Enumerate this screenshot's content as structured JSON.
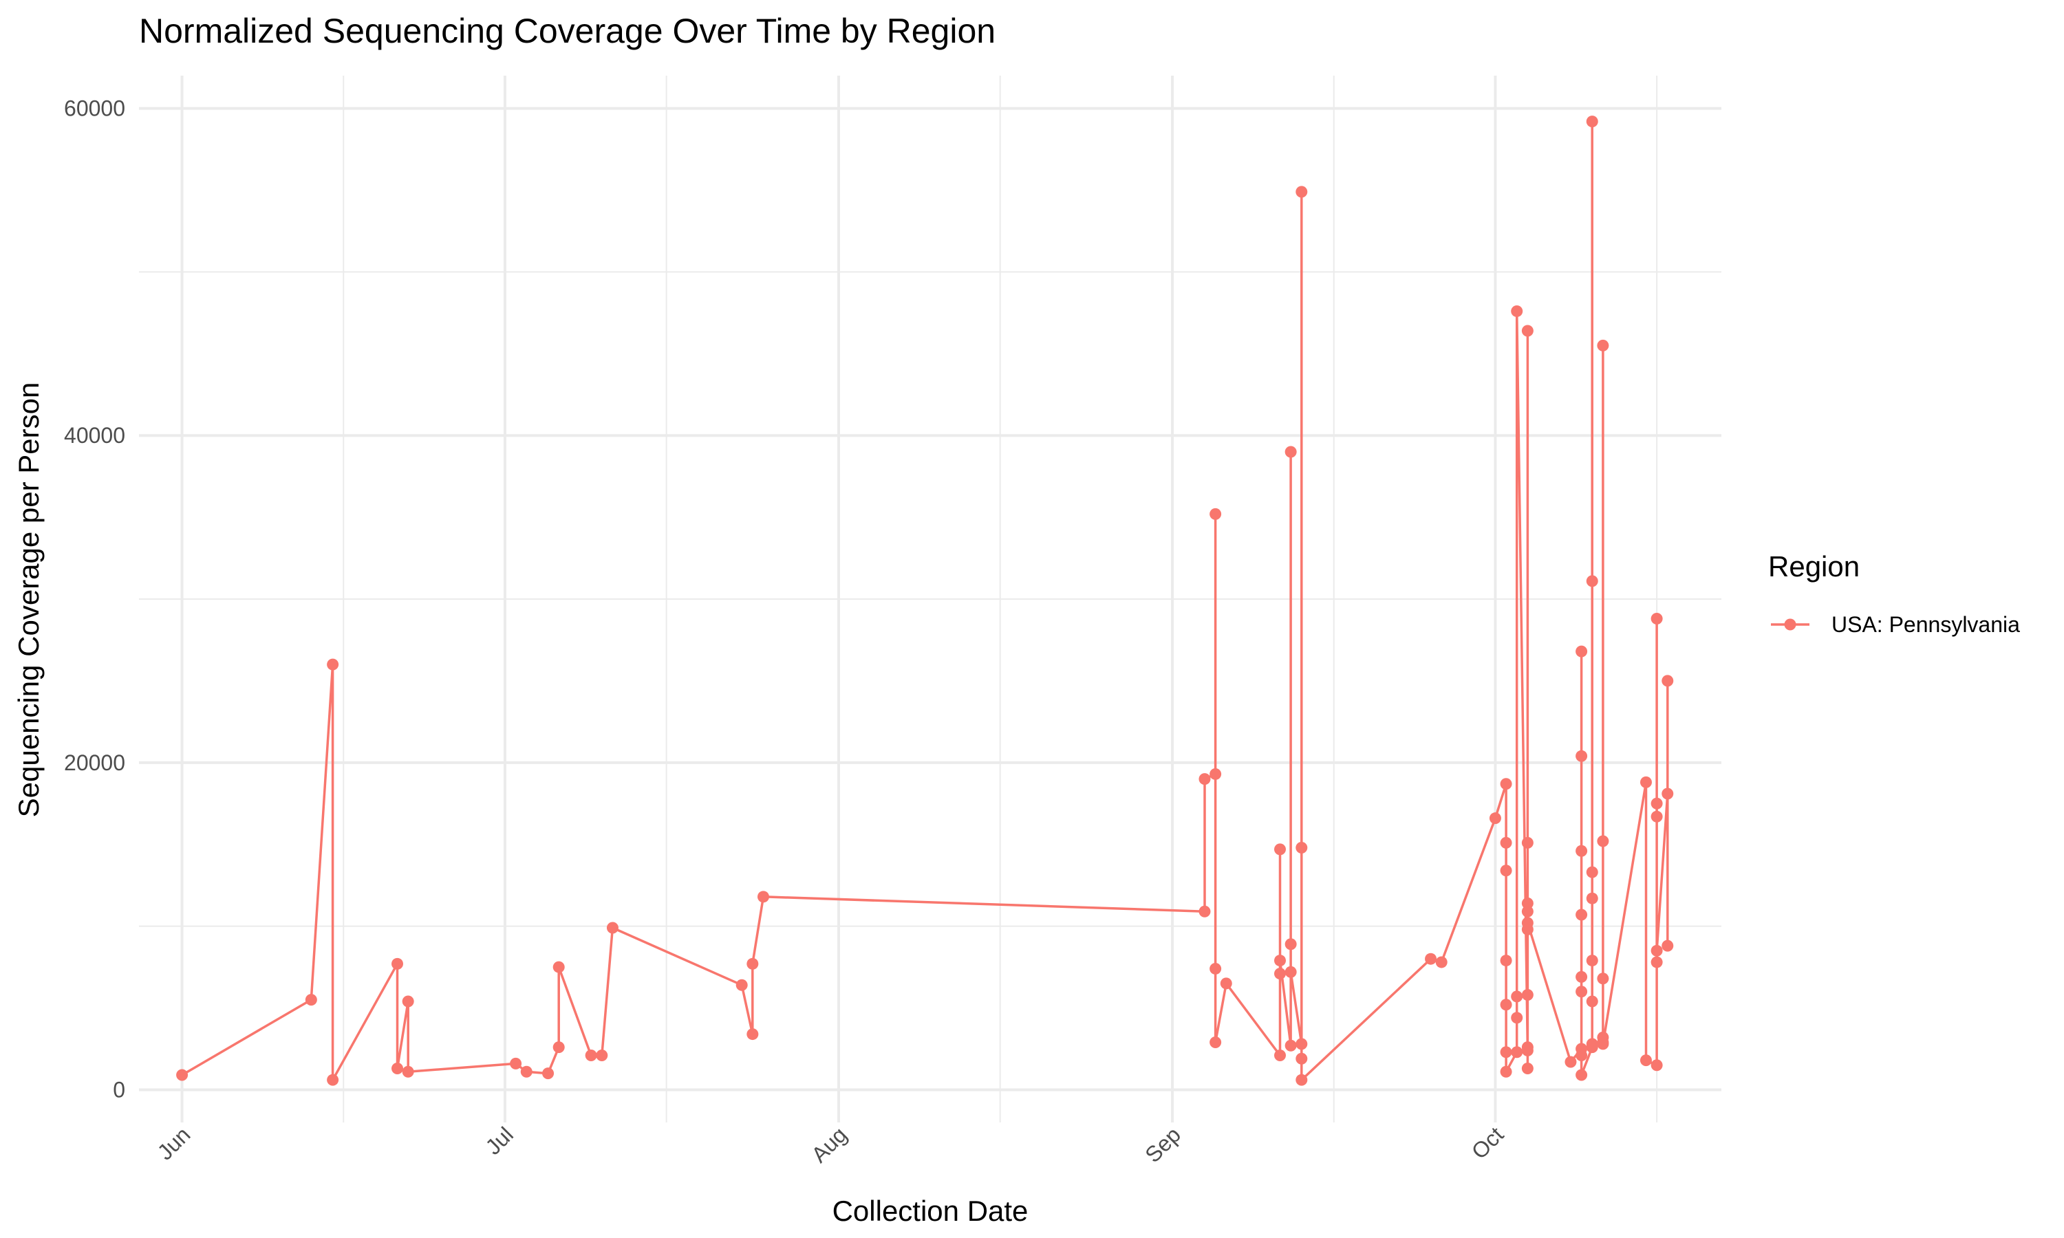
{
  "chart_data": {
    "type": "line",
    "title": "Normalized Sequencing Coverage Over Time by Region",
    "xlabel": "Collection Date",
    "ylabel": "Sequencing Coverage per Person",
    "xlim": [
      "2023-05-28",
      "2023-10-22"
    ],
    "ylim": [
      -2000,
      62000
    ],
    "x_ticks": [
      {
        "date": "2023-06-01",
        "label": "Jun"
      },
      {
        "date": "2023-07-01",
        "label": "Jul"
      },
      {
        "date": "2023-08-01",
        "label": "Aug"
      },
      {
        "date": "2023-09-01",
        "label": "Sep"
      },
      {
        "date": "2023-10-01",
        "label": "Oct"
      }
    ],
    "y_ticks": [
      0,
      20000,
      40000,
      60000
    ],
    "grid": true,
    "legend": {
      "title": "Region",
      "position": "right"
    },
    "series": [
      {
        "name": "USA: Pennsylvania",
        "color": "#F8766D",
        "points": [
          [
            "2023-06-01",
            900
          ],
          [
            "2023-06-13",
            5500
          ],
          [
            "2023-06-15",
            26000
          ],
          [
            "2023-06-15",
            600
          ],
          [
            "2023-06-21",
            7700
          ],
          [
            "2023-06-21",
            1300
          ],
          [
            "2023-06-22",
            5400
          ],
          [
            "2023-06-22",
            1100
          ],
          [
            "2023-07-02",
            1600
          ],
          [
            "2023-07-03",
            1100
          ],
          [
            "2023-07-05",
            1000
          ],
          [
            "2023-07-06",
            2600
          ],
          [
            "2023-07-06",
            7500
          ],
          [
            "2023-07-09",
            2100
          ],
          [
            "2023-07-10",
            2100
          ],
          [
            "2023-07-11",
            9900
          ],
          [
            "2023-07-23",
            6400
          ],
          [
            "2023-07-24",
            3400
          ],
          [
            "2023-07-24",
            7700
          ],
          [
            "2023-07-25",
            11800
          ],
          [
            "2023-09-04",
            10900
          ],
          [
            "2023-09-04",
            19000
          ],
          [
            "2023-09-05",
            19300
          ],
          [
            "2023-09-05",
            35200
          ],
          [
            "2023-09-05",
            7400
          ],
          [
            "2023-09-05",
            2900
          ],
          [
            "2023-09-06",
            6500
          ],
          [
            "2023-09-11",
            2100
          ],
          [
            "2023-09-11",
            14700
          ],
          [
            "2023-09-11",
            7100
          ],
          [
            "2023-09-11",
            7900
          ],
          [
            "2023-09-12",
            2700
          ],
          [
            "2023-09-12",
            39000
          ],
          [
            "2023-09-12",
            8900
          ],
          [
            "2023-09-12",
            7200
          ],
          [
            "2023-09-13",
            2800
          ],
          [
            "2023-09-13",
            54900
          ],
          [
            "2023-09-13",
            1900
          ],
          [
            "2023-09-13",
            14800
          ],
          [
            "2023-09-13",
            600
          ],
          [
            "2023-09-25",
            8000
          ],
          [
            "2023-09-26",
            7800
          ],
          [
            "2023-10-01",
            16600
          ],
          [
            "2023-10-02",
            18700
          ],
          [
            "2023-10-02",
            15100
          ],
          [
            "2023-10-02",
            13400
          ],
          [
            "2023-10-02",
            7900
          ],
          [
            "2023-10-02",
            5200
          ],
          [
            "2023-10-02",
            2300
          ],
          [
            "2023-10-02",
            1100
          ],
          [
            "2023-10-03",
            2300
          ],
          [
            "2023-10-03",
            4400
          ],
          [
            "2023-10-03",
            5700
          ],
          [
            "2023-10-03",
            47600
          ],
          [
            "2023-10-04",
            2400
          ],
          [
            "2023-10-04",
            46400
          ],
          [
            "2023-10-04",
            5800
          ],
          [
            "2023-10-04",
            10900
          ],
          [
            "2023-10-04",
            15100
          ],
          [
            "2023-10-04",
            11400
          ],
          [
            "2023-10-04",
            2600
          ],
          [
            "2023-10-04",
            1300
          ],
          [
            "2023-10-04",
            9800
          ],
          [
            "2023-10-04",
            10200
          ],
          [
            "2023-10-08",
            1700
          ],
          [
            "2023-10-09",
            2500
          ],
          [
            "2023-10-09",
            20400
          ],
          [
            "2023-10-09",
            26800
          ],
          [
            "2023-10-09",
            14600
          ],
          [
            "2023-10-09",
            10700
          ],
          [
            "2023-10-09",
            6900
          ],
          [
            "2023-10-09",
            6000
          ],
          [
            "2023-10-09",
            2100
          ],
          [
            "2023-10-09",
            900
          ],
          [
            "2023-10-10",
            2600
          ],
          [
            "2023-10-10",
            5400
          ],
          [
            "2023-10-10",
            7900
          ],
          [
            "2023-10-10",
            13300
          ],
          [
            "2023-10-10",
            31100
          ],
          [
            "2023-10-10",
            59200
          ],
          [
            "2023-10-10",
            11700
          ],
          [
            "2023-10-10",
            2800
          ],
          [
            "2023-10-11",
            2900
          ],
          [
            "2023-10-11",
            45500
          ],
          [
            "2023-10-11",
            15200
          ],
          [
            "2023-10-11",
            6800
          ],
          [
            "2023-10-11",
            3200
          ],
          [
            "2023-10-11",
            2800
          ],
          [
            "2023-10-15",
            18800
          ],
          [
            "2023-10-15",
            1800
          ],
          [
            "2023-10-16",
            1500
          ],
          [
            "2023-10-16",
            17500
          ],
          [
            "2023-10-16",
            28800
          ],
          [
            "2023-10-16",
            16700
          ],
          [
            "2023-10-16",
            7800
          ],
          [
            "2023-10-16",
            8500
          ],
          [
            "2023-10-17",
            18100
          ],
          [
            "2023-10-17",
            25000
          ],
          [
            "2023-10-17",
            8800
          ]
        ]
      }
    ]
  }
}
